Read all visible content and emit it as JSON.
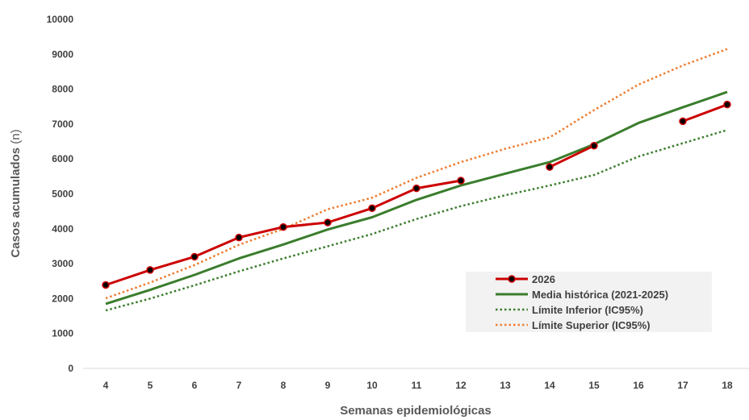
{
  "chart_data": {
    "type": "line",
    "title": "",
    "xlabel": "Semanas epidemiológicas",
    "ylabel_main": "Casos acumulados",
    "ylabel_unit": " (n)",
    "ylim": [
      0,
      10000
    ],
    "yticks": [
      0,
      1000,
      2000,
      3000,
      4000,
      5000,
      6000,
      7000,
      8000,
      9000,
      10000
    ],
    "x": [
      4,
      5,
      6,
      7,
      8,
      9,
      10,
      11,
      12,
      13,
      14,
      15,
      16,
      17,
      18
    ],
    "grid": false,
    "legend_position": "bottom-right",
    "series": [
      {
        "name": "2026",
        "color": "#cc0000",
        "style": "solid-markers",
        "values": [
          2390,
          2820,
          3200,
          3750,
          4050,
          4180,
          4590,
          5160,
          5380,
          null,
          5770,
          6380,
          null,
          7080,
          7560
        ]
      },
      {
        "name": "Media histórica (2021-2025)",
        "color": "#3a7d2c",
        "style": "solid",
        "values": [
          1850,
          2250,
          2680,
          3150,
          3550,
          3980,
          4330,
          4830,
          5240,
          5580,
          5910,
          6420,
          7030,
          7480,
          7920
        ]
      },
      {
        "name": "Límite Inferior (IC95%)",
        "color": "#3a7d2c",
        "style": "dotted",
        "values": [
          1660,
          2000,
          2380,
          2780,
          3150,
          3500,
          3850,
          4280,
          4650,
          4960,
          5240,
          5540,
          6070,
          6450,
          6830
        ]
      },
      {
        "name": "Límite Superior (IC95%)",
        "color": "#ed7d31",
        "style": "dotted",
        "values": [
          2010,
          2460,
          2960,
          3540,
          4000,
          4560,
          4890,
          5460,
          5910,
          6290,
          6620,
          7400,
          8130,
          8680,
          9150
        ]
      }
    ]
  }
}
